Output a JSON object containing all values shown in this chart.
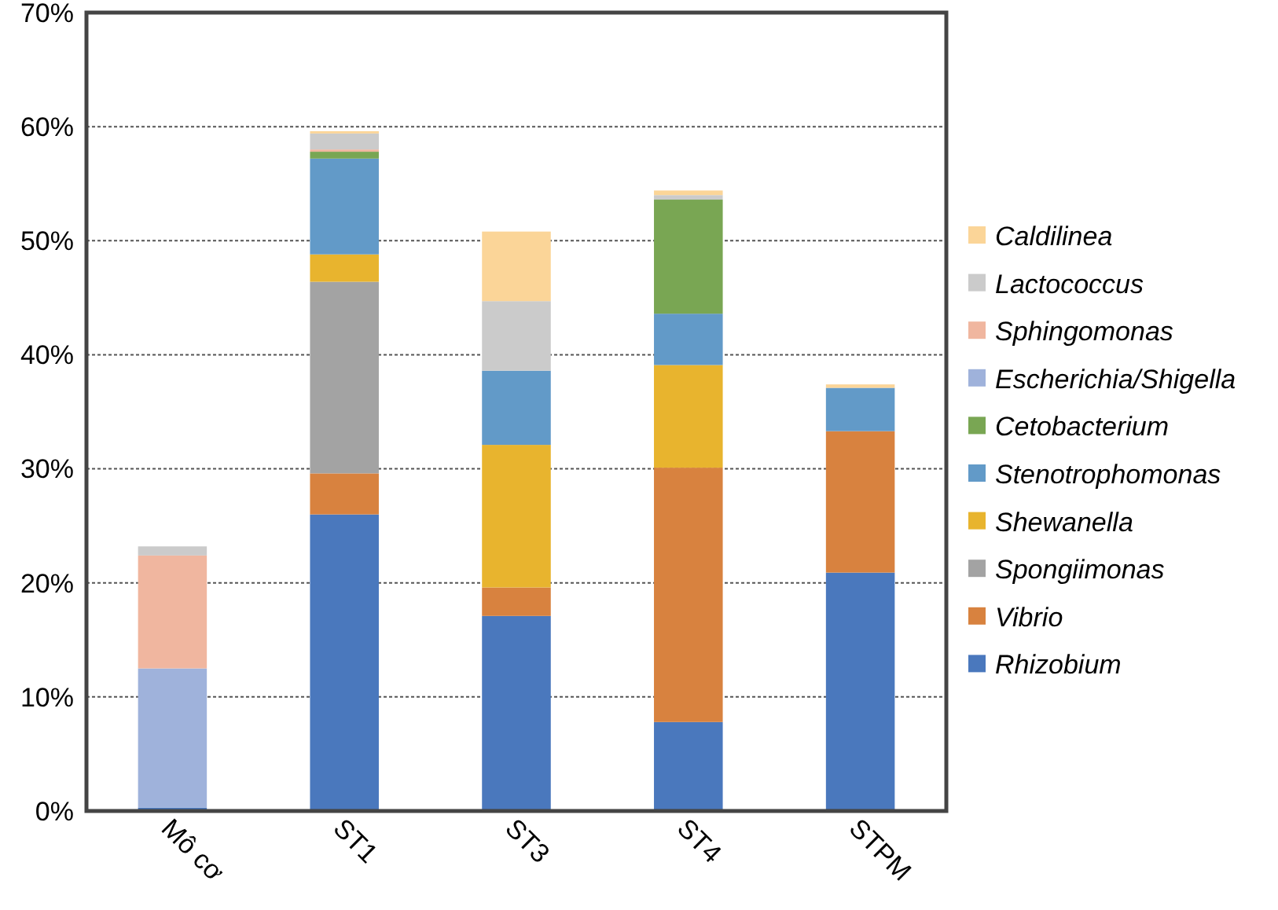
{
  "chart_data": {
    "type": "bar",
    "stacked": true,
    "categories": [
      "Mô cơ",
      "ST1",
      "ST3",
      "ST4",
      "STPM"
    ],
    "series": [
      {
        "name": "Rhizobium",
        "color": "#4a78bd",
        "values": [
          0.3,
          26.0,
          17.1,
          7.8,
          20.9
        ]
      },
      {
        "name": "Vibrio",
        "color": "#d8823f",
        "values": [
          null,
          3.6,
          2.5,
          22.3,
          12.4
        ]
      },
      {
        "name": "Spongiimonas",
        "color": "#a3a3a3",
        "values": [
          null,
          16.8,
          null,
          null,
          null
        ]
      },
      {
        "name": "Shewanella",
        "color": "#e8b42e",
        "values": [
          null,
          2.4,
          12.5,
          9.0,
          null
        ]
      },
      {
        "name": "Stenotrophomonas",
        "color": "#629ac8",
        "values": [
          null,
          8.4,
          6.5,
          4.5,
          3.8
        ]
      },
      {
        "name": "Cetobacterium",
        "color": "#79a653",
        "values": [
          null,
          0.6,
          null,
          10.0,
          null
        ]
      },
      {
        "name": "Escherichia/Shigella",
        "color": "#9fb2db",
        "values": [
          12.2,
          null,
          null,
          null,
          null
        ]
      },
      {
        "name": "Sphingomonas",
        "color": "#f0b69f",
        "values": [
          9.9,
          0.2,
          null,
          null,
          null
        ]
      },
      {
        "name": "Lactococcus",
        "color": "#cbcbcb",
        "values": [
          0.8,
          1.4,
          6.1,
          0.4,
          null
        ]
      },
      {
        "name": "Caldilinea",
        "color": "#fbd598",
        "values": [
          null,
          0.2,
          6.1,
          0.4,
          0.3
        ]
      }
    ],
    "ylim": [
      0,
      70
    ],
    "yticks": [
      {
        "value": 0,
        "label": "0%"
      },
      {
        "value": 10,
        "label": "10%"
      },
      {
        "value": 20,
        "label": "20%"
      },
      {
        "value": 30,
        "label": "30%"
      },
      {
        "value": 40,
        "label": "40%"
      },
      {
        "value": 50,
        "label": "50%"
      },
      {
        "value": 60,
        "label": "60%"
      },
      {
        "value": 70,
        "label": "70%"
      }
    ],
    "grid": "y",
    "legend": "right"
  }
}
